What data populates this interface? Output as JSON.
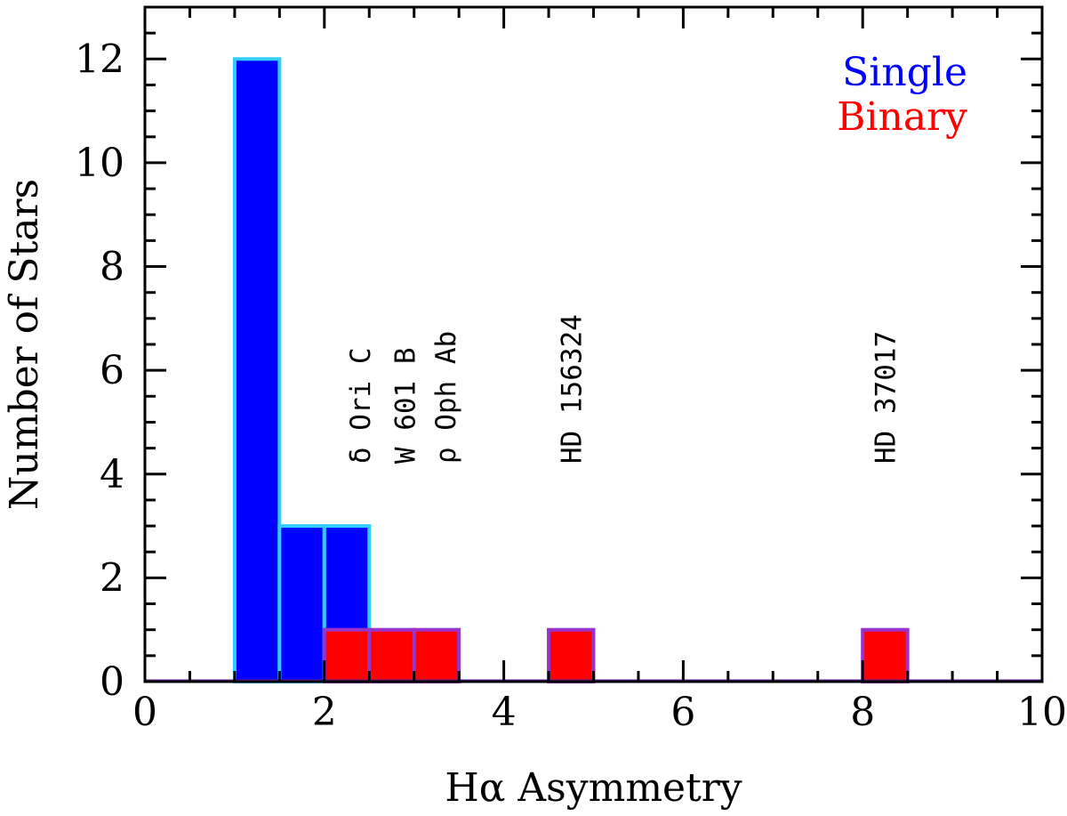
{
  "chart_data": {
    "type": "bar",
    "subtype": "overlaid-histogram",
    "title": "",
    "xlabel": "Hα Asymmetry",
    "ylabel": "Number of Stars",
    "xlim": [
      0,
      10
    ],
    "ylim": [
      0,
      13
    ],
    "xticks": [
      0,
      2,
      4,
      6,
      8,
      10
    ],
    "yticks": [
      0,
      2,
      4,
      6,
      8,
      10,
      12
    ],
    "x_minor_step": 0.5,
    "y_minor_step": 0.5,
    "bin_width": 0.5,
    "grid": false,
    "legend_position": "top-right",
    "series": [
      {
        "name": "Single",
        "fill": "#0000ff",
        "edge": "#33ccff",
        "bins": [
          {
            "x0": 1.0,
            "x1": 1.5,
            "count": 12
          },
          {
            "x0": 1.5,
            "x1": 2.0,
            "count": 3
          },
          {
            "x0": 2.0,
            "x1": 2.5,
            "count": 3
          }
        ]
      },
      {
        "name": "Binary",
        "fill": "#ff0000",
        "edge": "#9933cc",
        "bins": [
          {
            "x0": 2.0,
            "x1": 2.5,
            "count": 1
          },
          {
            "x0": 2.5,
            "x1": 3.0,
            "count": 1
          },
          {
            "x0": 3.0,
            "x1": 3.5,
            "count": 1
          },
          {
            "x0": 4.5,
            "x1": 5.0,
            "count": 1
          },
          {
            "x0": 8.0,
            "x1": 8.5,
            "count": 1
          }
        ]
      }
    ],
    "annotations": [
      {
        "text": "δ Ori C",
        "x": 2.4,
        "y": 4.2
      },
      {
        "text": "W 601 B",
        "x": 2.9,
        "y": 4.2
      },
      {
        "text": "ρ Oph Ab",
        "x": 3.35,
        "y": 4.2
      },
      {
        "text": "HD 156324",
        "x": 4.75,
        "y": 4.2
      },
      {
        "text": "HD 37017",
        "x": 8.25,
        "y": 4.2
      }
    ]
  }
}
